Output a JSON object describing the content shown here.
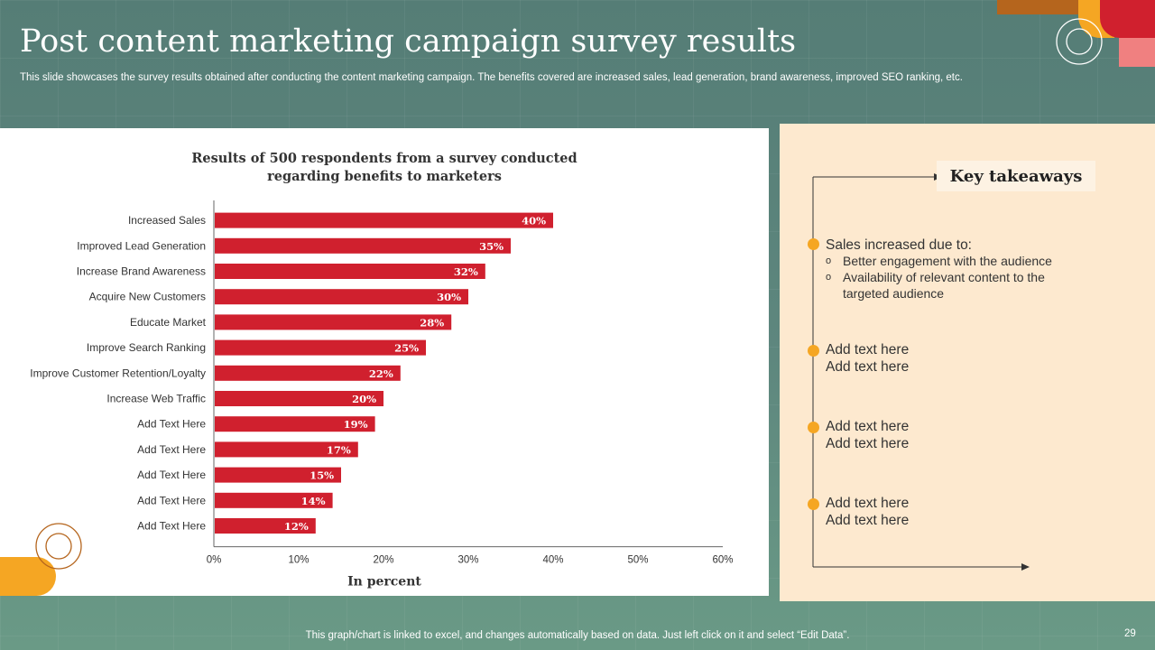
{
  "slide": {
    "title": "Post content marketing campaign survey results",
    "subtitle": "This slide showcases the survey results obtained after conducting the content marketing campaign. The benefits covered are increased sales, lead generation, brand awareness, improved SEO ranking, etc.",
    "footer": "This graph/chart is linked to excel,  and changes automatically based on data. Just left click on it and select “Edit Data”.",
    "page_number": "29"
  },
  "colors": {
    "bar": "#d0202e",
    "accent_orange": "#f5a623",
    "accent_brown": "#b5651d",
    "accent_red": "#d0202e",
    "accent_pink": "#f08080",
    "panel_cream": "#fde9cf"
  },
  "chart_data": {
    "type": "bar",
    "orientation": "horizontal",
    "title_lines": [
      "Results of 500 respondents from a survey conducted",
      "regarding benefits to marketers"
    ],
    "xlabel": "In percent",
    "ylabel": "",
    "categories": [
      "Increased Sales",
      "Improved Lead Generation",
      "Increase Brand Awareness",
      "Acquire New Customers",
      "Educate Market",
      "Improve Search Ranking",
      "Improve Customer Retention/Loyalty",
      "Increase Web Traffic",
      "Add Text Here",
      "Add Text Here",
      "Add Text Here",
      "Add Text Here",
      "Add Text Here"
    ],
    "values": [
      40,
      35,
      32,
      30,
      28,
      25,
      22,
      20,
      19,
      17,
      15,
      14,
      12
    ],
    "value_labels": [
      "40%",
      "35%",
      "32%",
      "30%",
      "28%",
      "25%",
      "22%",
      "20%",
      "19%",
      "17%",
      "15%",
      "14%",
      "12%"
    ],
    "xlim": [
      0,
      60
    ],
    "xticks": [
      0,
      10,
      20,
      30,
      40,
      50,
      60
    ],
    "xtick_labels": [
      "0%",
      "10%",
      "20%",
      "30%",
      "40%",
      "50%",
      "60%"
    ],
    "grid": false,
    "legend": "none"
  },
  "takeaways": {
    "heading": "Key takeaways",
    "items": [
      {
        "lines": [
          "Sales increased due to:"
        ],
        "sub_bullet": "o",
        "sub": [
          [
            "Better engagement with the audience"
          ],
          [
            "Availability  of relevant content to the",
            "targeted audience"
          ]
        ]
      },
      {
        "lines": [
          "Add text here",
          "Add text here"
        ]
      },
      {
        "lines": [
          "Add text here",
          "Add text here"
        ]
      },
      {
        "lines": [
          "Add text here",
          "Add text here"
        ]
      }
    ]
  }
}
